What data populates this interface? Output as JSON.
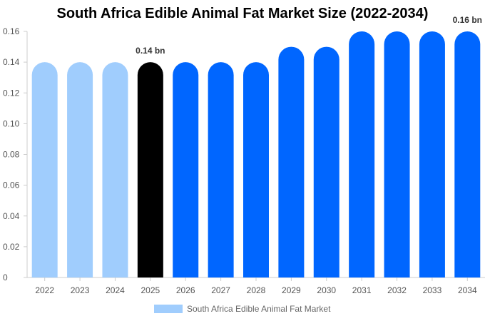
{
  "chart_data": {
    "type": "bar",
    "title": "South Africa Edible Animal Fat Market Size (2022-2034)",
    "categories": [
      "2022",
      "2023",
      "2024",
      "2025",
      "2026",
      "2027",
      "2028",
      "2029",
      "2030",
      "2031",
      "2032",
      "2033",
      "2034"
    ],
    "series": [
      {
        "name": "South Africa Edible Animal Fat Market",
        "values": [
          0.14,
          0.14,
          0.14,
          0.14,
          0.14,
          0.14,
          0.14,
          0.15,
          0.15,
          0.16,
          0.16,
          0.16,
          0.16
        ]
      }
    ],
    "bar_colors": [
      "#a0cdfd",
      "#a0cdfd",
      "#a0cdfd",
      "#000000",
      "#0066ff",
      "#0066ff",
      "#0066ff",
      "#0066ff",
      "#0066ff",
      "#0066ff",
      "#0066ff",
      "#0066ff",
      "#0066ff"
    ],
    "data_labels": [
      {
        "category": "2025",
        "text": "0.14 bn"
      },
      {
        "category": "2034",
        "text": "0.16 bn"
      }
    ],
    "yticks": [
      0,
      0.02,
      0.04,
      0.06,
      0.08,
      0.1,
      0.12,
      0.14,
      0.16
    ],
    "ytick_labels": [
      "0",
      "0.02",
      "0.04",
      "0.06",
      "0.08",
      "0.10",
      "0.12",
      "0.14",
      "0.16"
    ],
    "ylim": [
      0,
      0.16
    ],
    "xlabel": "",
    "ylabel": "",
    "legend": {
      "label": "South Africa Edible Animal Fat Market",
      "color": "#a0cdfd",
      "position": "bottom-center"
    },
    "grid": false
  }
}
